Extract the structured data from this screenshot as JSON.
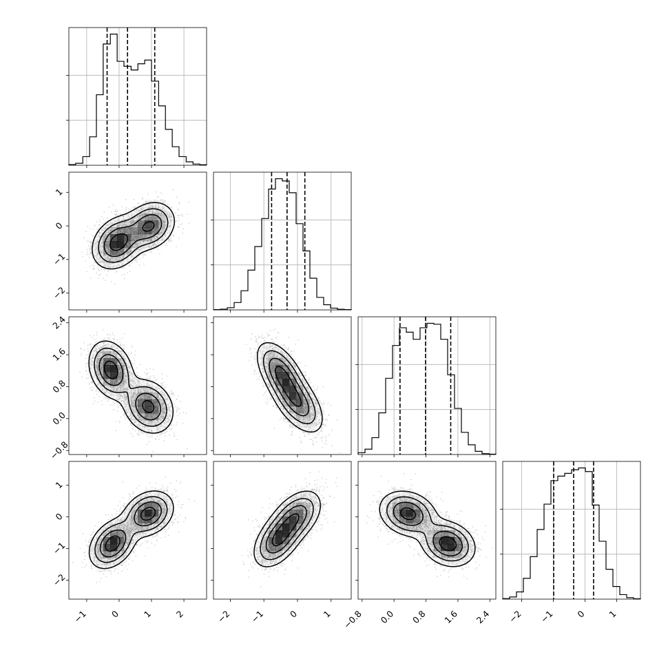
{
  "chart_data": {
    "type": "corner",
    "title": "",
    "grid": true,
    "colors": {
      "points": "#b8b8b8",
      "lines": "#000000",
      "density": "#000000",
      "grid": "#b0b0b0"
    },
    "dimensions": [
      {
        "xlabel": "",
        "range": [
          -1.55,
          2.7
        ],
        "ticks": [
          -1,
          0,
          1,
          2
        ],
        "tick_labels": [
          "−1",
          "0",
          "1",
          "2"
        ]
      },
      {
        "xlabel": "",
        "range": [
          -2.5,
          1.6
        ],
        "ticks": [
          -2,
          -1,
          0,
          1
        ],
        "tick_labels": [
          "−2",
          "−1",
          "0",
          "1"
        ]
      },
      {
        "xlabel": "",
        "range": [
          -0.9,
          2.55
        ],
        "ticks": [
          -0.8,
          0.0,
          0.8,
          1.6,
          2.4
        ],
        "tick_labels": [
          "−0.8",
          "0.0",
          "0.8",
          "1.6",
          "2.4"
        ]
      },
      {
        "xlabel": "",
        "range": [
          -2.6,
          1.75
        ],
        "ticks": [
          -2,
          -1,
          0,
          1
        ],
        "tick_labels": [
          "−2",
          "−1",
          "0",
          "1"
        ]
      }
    ],
    "histograms": [
      {
        "dim": 0,
        "bins": [
          -1.55,
          -1.34,
          -1.12,
          -0.91,
          -0.7,
          -0.49,
          -0.27,
          -0.06,
          0.15,
          0.37,
          0.58,
          0.79,
          1.0,
          1.22,
          1.43,
          1.64,
          1.85,
          2.07,
          2.28,
          2.49,
          2.7
        ],
        "counts": [
          3,
          8,
          35,
          115,
          285,
          490,
          530,
          420,
          400,
          385,
          410,
          425,
          340,
          240,
          145,
          75,
          35,
          14,
          5,
          2
        ],
        "quantiles": [
          -0.37,
          0.26,
          1.1
        ]
      },
      {
        "dim": 1,
        "bins": [
          -2.5,
          -2.295,
          -2.09,
          -1.885,
          -1.68,
          -1.475,
          -1.27,
          -1.065,
          -0.86,
          -0.655,
          -0.45,
          -0.245,
          -0.04,
          0.165,
          0.37,
          0.575,
          0.78,
          0.985,
          1.19,
          1.395,
          1.6
        ],
        "counts": [
          2,
          5,
          15,
          50,
          130,
          270,
          430,
          620,
          820,
          890,
          875,
          795,
          585,
          400,
          215,
          85,
          35,
          12,
          4,
          2
        ],
        "quantiles": [
          -0.77,
          -0.31,
          0.22
        ]
      },
      {
        "dim": 2,
        "bins": [
          -0.9,
          -0.7275,
          -0.555,
          -0.3825,
          -0.21,
          -0.0375,
          0.135,
          0.3075,
          0.48,
          0.6525,
          0.825,
          0.9975,
          1.17,
          1.3425,
          1.515,
          1.6875,
          1.86,
          2.0325,
          2.205,
          2.3775,
          2.55
        ],
        "counts": [
          10,
          30,
          95,
          235,
          430,
          615,
          715,
          690,
          650,
          715,
          740,
          735,
          650,
          450,
          260,
          125,
          55,
          18,
          5,
          2
        ],
        "quantiles": [
          0.15,
          0.79,
          1.42
        ]
      },
      {
        "dim": 3,
        "bins": [
          -2.6,
          -2.3825,
          -2.165,
          -1.9475,
          -1.73,
          -1.5125,
          -1.295,
          -1.0775,
          -0.86,
          -0.6425,
          -0.425,
          -0.2075,
          0.01,
          0.2275,
          0.445,
          0.6625,
          0.88,
          1.0975,
          1.315,
          1.5325,
          1.75
        ],
        "counts": [
          3,
          12,
          40,
          115,
          235,
          385,
          525,
          655,
          680,
          695,
          715,
          725,
          705,
          520,
          320,
          165,
          70,
          25,
          8,
          2
        ],
        "quantiles": [
          -0.99,
          -0.36,
          0.27
        ]
      }
    ],
    "pairs": [
      {
        "x_dim": 0,
        "y_dim": 1,
        "clusters": [
          {
            "mx": -0.05,
            "my": -0.5,
            "sx": 0.38,
            "sy": 0.38,
            "rho": 0.25,
            "w": 0.55
          },
          {
            "mx": 0.95,
            "my": 0.0,
            "sx": 0.38,
            "sy": 0.35,
            "rho": 0.2,
            "w": 0.45
          }
        ]
      },
      {
        "x_dim": 0,
        "y_dim": 2,
        "clusters": [
          {
            "mx": -0.25,
            "my": 1.22,
            "sx": 0.33,
            "sy": 0.35,
            "rho": -0.25,
            "w": 0.5
          },
          {
            "mx": 0.9,
            "my": 0.3,
            "sx": 0.38,
            "sy": 0.33,
            "rho": -0.2,
            "w": 0.5
          }
        ]
      },
      {
        "x_dim": 1,
        "y_dim": 2,
        "clusters": [
          {
            "mx": -0.5,
            "my": 1.15,
            "sx": 0.35,
            "sy": 0.38,
            "rho": -0.55,
            "w": 0.5
          },
          {
            "mx": 0.0,
            "my": 0.4,
            "sx": 0.38,
            "sy": 0.38,
            "rho": -0.55,
            "w": 0.5
          }
        ]
      },
      {
        "x_dim": 0,
        "y_dim": 3,
        "clusters": [
          {
            "mx": -0.2,
            "my": -0.85,
            "sx": 0.35,
            "sy": 0.38,
            "rho": 0.35,
            "w": 0.5
          },
          {
            "mx": 0.9,
            "my": 0.1,
            "sx": 0.38,
            "sy": 0.35,
            "rho": 0.25,
            "w": 0.5
          }
        ]
      },
      {
        "x_dim": 1,
        "y_dim": 3,
        "clusters": [
          {
            "mx": -0.6,
            "my": -0.75,
            "sx": 0.35,
            "sy": 0.42,
            "rho": 0.45,
            "w": 0.5
          },
          {
            "mx": -0.05,
            "my": 0.0,
            "sx": 0.38,
            "sy": 0.42,
            "rho": 0.45,
            "w": 0.5
          }
        ]
      },
      {
        "x_dim": 2,
        "y_dim": 3,
        "clusters": [
          {
            "mx": 0.35,
            "my": 0.1,
            "sx": 0.35,
            "sy": 0.35,
            "rho": -0.2,
            "w": 0.5
          },
          {
            "mx": 1.35,
            "my": -0.85,
            "sx": 0.33,
            "sy": 0.35,
            "rho": -0.2,
            "w": 0.5
          }
        ]
      }
    ]
  }
}
